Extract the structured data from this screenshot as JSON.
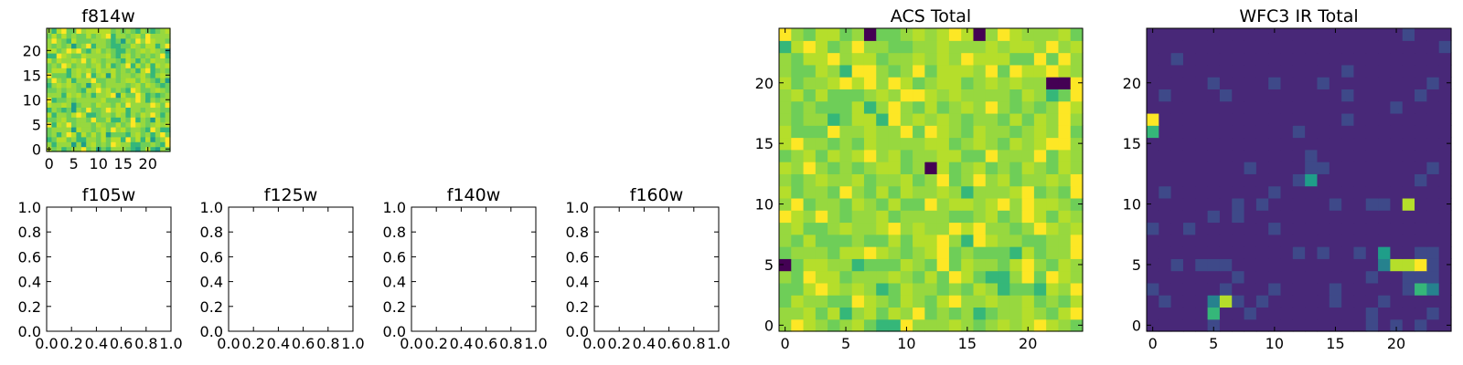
{
  "chart_data": [
    {
      "type": "heatmap",
      "title": "f814w",
      "colormap": "viridis",
      "grid": false,
      "size": [
        25,
        25
      ],
      "x_ticks": [
        0,
        5,
        10,
        15,
        20
      ],
      "x_tick_labels": [
        "0",
        "5",
        "10",
        "15",
        "20"
      ],
      "y_ticks": [
        0,
        5,
        10,
        15,
        20
      ],
      "y_tick_labels": [
        "0",
        "5",
        "10",
        "15",
        "20"
      ],
      "values": [
        "9786788A78576888765796587",
        "8688858589787A9886677876A",
        "6799786688797996A7969578A",
        "7868A969797957776897868A7",
        "7888859887897A8978876A866",
        "A698A788879877978A9878989",
        "778977887A7796687A6875978",
        "968879A96678879868798A868",
        "68767587A778A899688788877",
        "9889857887988797A8888A97A",
        "A67787888889777898A868788",
        "8886989786889A5977A867678",
        "7787887698A897876A9778987",
        "6898987858978888789798767",
        "7A8796888A778878997987685",
        "A7776897A6895978878976898",
        "79996898979889787869A6787",
        "787A978878979678A69796989",
        "9798898A79878876986879887",
        "66A98779888897689787878A6",
        "9978A9A768978766878989875",
        "87878578A688766779879968A",
        "8A8769777888767587A8A9887",
        "797978779789A6887897A8888",
        "869A77A899999787876876789"
      ]
    },
    {
      "type": "scatter",
      "title": "f105w",
      "xlim": [
        0,
        1
      ],
      "ylim": [
        0,
        1
      ],
      "x_tick_labels": [
        "0.0",
        "0.2",
        "0.4",
        "0.6",
        "0.8",
        "1.0"
      ],
      "y_tick_labels": [
        "0.0",
        "0.2",
        "0.4",
        "0.6",
        "0.8",
        "1.0"
      ],
      "series": []
    },
    {
      "type": "scatter",
      "title": "f125w",
      "xlim": [
        0,
        1
      ],
      "ylim": [
        0,
        1
      ],
      "x_tick_labels": [
        "0.0",
        "0.2",
        "0.4",
        "0.6",
        "0.8",
        "1.0"
      ],
      "y_tick_labels": [
        "0.0",
        "0.2",
        "0.4",
        "0.6",
        "0.8",
        "1.0"
      ],
      "series": []
    },
    {
      "type": "scatter",
      "title": "f140w",
      "xlim": [
        0,
        1
      ],
      "ylim": [
        0,
        1
      ],
      "x_tick_labels": [
        "0.0",
        "0.2",
        "0.4",
        "0.6",
        "0.8",
        "1.0"
      ],
      "y_tick_labels": [
        "0.0",
        "0.2",
        "0.4",
        "0.6",
        "0.8",
        "1.0"
      ],
      "series": []
    },
    {
      "type": "scatter",
      "title": "f160w",
      "xlim": [
        0,
        1
      ],
      "ylim": [
        0,
        1
      ],
      "x_tick_labels": [
        "0.0",
        "0.2",
        "0.4",
        "0.6",
        "0.8",
        "1.0"
      ],
      "y_tick_labels": [
        "0.0",
        "0.2",
        "0.4",
        "0.6",
        "0.8",
        "1.0"
      ],
      "series": []
    },
    {
      "type": "heatmap",
      "title": "ACS Total",
      "colormap": "viridis",
      "grid": false,
      "size": [
        25,
        25
      ],
      "x_ticks": [
        0,
        5,
        10,
        15,
        20
      ],
      "x_tick_labels": [
        "0",
        "5",
        "10",
        "15",
        "20"
      ],
      "y_ticks": [
        0,
        5,
        10,
        15,
        20
      ],
      "y_tick_labels": [
        "0",
        "5",
        "10",
        "15",
        "20"
      ],
      "values": [
        "8A98789766A8889878989A987",
        "88979689798A787867889879A",
        "798877A9879879A8898897879",
        "779A98986798878798677698A",
        "87A99788898797A97668A7A98",
        "0799886777987A798879A8798",
        "7888799A98789A7877769788A",
        "8797778779799A86A9887788A",
        "897789889A8988A9A8878A989",
        "A98A8788978888778978A9798",
        "8A7887987977A89989A8A9987",
        "97887A87979889868889A787A",
        "8789889788978A78A8978898A",
        "98A8787899780978978798798",
        "7897989A897889977A888A798",
        "9A88787988889978987989AA8",
        "9777A88988A7A9879887898A7",
        "878867996A8989878879798A8",
        "878777968A8797898A87878A9",
        "8979777898AA989888879867A",
        "97889A9A8A97899789898800A",
        "877986AA878A79998A7A99A98",
        "8799A8997889898A99977A7A8",
        "69A978A887788988898998A89",
        "A8799780778989A908A988897"
      ]
    },
    {
      "type": "heatmap",
      "title": "WFC3 IR Total",
      "colormap": "viridis",
      "grid": false,
      "size": [
        25,
        25
      ],
      "x_ticks": [
        0,
        5,
        10,
        15,
        20
      ],
      "x_tick_labels": [
        "0",
        "5",
        "10",
        "15",
        "20"
      ],
      "y_ticks": [
        0,
        5,
        10,
        15,
        20
      ],
      "y_tick_labels": [
        "0",
        "5",
        "10",
        "15",
        "20"
      ],
      "values": [
        "1111121111111111112121211",
        "1111161121111111112111121",
        "1211149212111112111211111",
        "2111112111211112111112641",
        "1111111211111111112112221",
        "1121222111111111111499A21",
        "1111111111112121121511221",
        "1111111111111111111111111",
        "2112111111211111111111111",
        "1111121211111111111111111",
        "1111111212111112112219111",
        "1211111111211111111111111",
        "1111111111112511111111211",
        "1111111121111221111111121",
        "1111111111111211111111111",
        "1111111111111111111111111",
        "6111111111112111111111111",
        "A111111111111111211111111",
        "1111111111111111111121111",
        "1211112111111111211111211",
        "1111121111211121111111121",
        "1111111111111111211111111",
        "1121111111111111111111111",
        "1111111111111111111111112",
        "1111111111111111111112111"
      ]
    }
  ]
}
